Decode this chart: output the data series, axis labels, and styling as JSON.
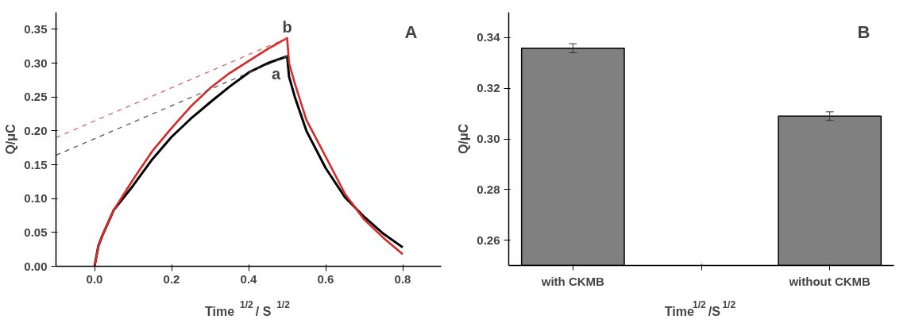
{
  "chart_data": [
    {
      "type": "line",
      "xlabel": "Time $^{1/2}$/ S$^{1/2}$",
      "ylabel": "Q/μC",
      "xlim": [
        -0.1,
        0.9
      ],
      "ylim": [
        0,
        0.375
      ],
      "xticks": [
        {
          "value": 0,
          "label": "0.0"
        },
        0.2,
        0.4,
        0.6,
        0.8
      ],
      "yticks": [
        {
          "value": 0,
          "label": "0.00"
        },
        0.05,
        {
          "value": 0.1,
          "label": "0.10"
        },
        0.15,
        {
          "value": 0.2,
          "label": "0.20"
        },
        0.25,
        {
          "value": 0.3,
          "label": "0.30"
        },
        0.35
      ],
      "grid": false,
      "legend": false,
      "series": [
        {
          "color": "#000000",
          "x": [
            0,
            0.01,
            0.02,
            0.05,
            0.1,
            0.15,
            0.2,
            0.25,
            0.3,
            0.35,
            0.4,
            0.45,
            0.5,
            0.505,
            0.52,
            0.55,
            0.6,
            0.65,
            0.7,
            0.75,
            0.8
          ],
          "values": [
            0,
            0.03,
            0.045,
            0.083,
            0.119,
            0.158,
            0.191,
            0.218,
            0.242,
            0.265,
            0.286,
            0.3,
            0.31,
            0.28,
            0.25,
            0.2,
            0.145,
            0.102,
            0.073,
            0.048,
            0.028
          ]
        },
        {
          "color": "#d42a2a",
          "x": [
            0,
            0.01,
            0.02,
            0.05,
            0.1,
            0.15,
            0.2,
            0.25,
            0.3,
            0.35,
            0.4,
            0.45,
            0.5,
            0.505,
            0.52,
            0.55,
            0.6,
            0.65,
            0.7,
            0.75,
            0.8
          ],
          "values": [
            0,
            0.03,
            0.045,
            0.083,
            0.128,
            0.17,
            0.204,
            0.236,
            0.263,
            0.285,
            0.303,
            0.321,
            0.337,
            0.3,
            0.27,
            0.216,
            0.162,
            0.107,
            0.069,
            0.042,
            0.018
          ]
        },
        {
          "color": "#555555",
          "line_style": "dashed",
          "x": [
            -0.1,
            0.5
          ],
          "values": [
            0.164,
            0.31
          ]
        },
        {
          "color": "#d9605a",
          "line_style": "dashed",
          "x": [
            -0.1,
            0.5
          ],
          "values": [
            0.19,
            0.337
          ]
        }
      ],
      "annotations": [
        "A",
        {
          "text": "a",
          "x": 0.5,
          "y": 0.31
        },
        {
          "text": "b",
          "x": 0.5,
          "y": 0.337
        }
      ]
    },
    {
      "type": "bar",
      "xlabel": "Time$^{1/2}$/S$^{1/2}$",
      "ylabel": "Q/μC",
      "categories": [
        "with CKMB",
        null,
        "without CKMB"
      ],
      "values": [
        0.3358,
        null,
        0.309
      ],
      "errors": [
        0.0018,
        null,
        0.0017
      ],
      "color": "#808080",
      "ylim": [
        0.25,
        0.35
      ],
      "yticks": [
        0.26,
        0.28,
        {
          "value": 0.3,
          "label": "0.30"
        },
        0.32,
        0.34
      ],
      "grid": false,
      "legend": false,
      "annotations": [
        "B"
      ]
    }
  ]
}
